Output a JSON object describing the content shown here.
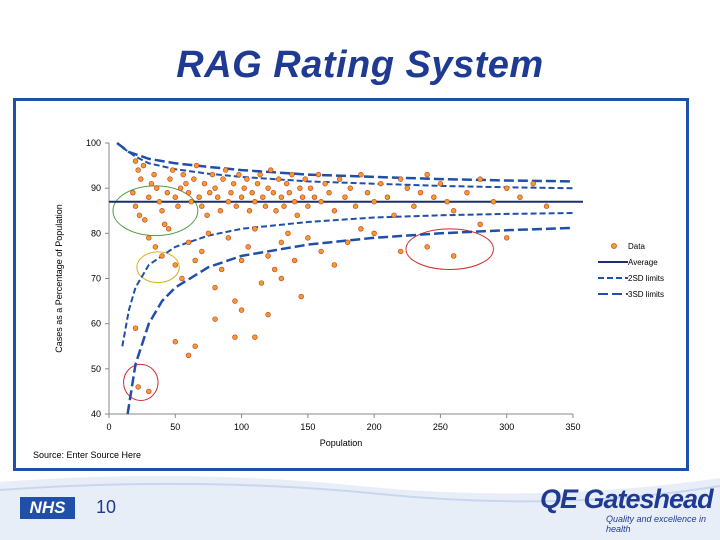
{
  "slide": {
    "title": "RAG Rating System",
    "source": "Source: Enter Source Here",
    "page_number": "10",
    "nhs_logo": "NHS",
    "qe_logo": "QE Gateshead",
    "qe_tagline": "Quality and excellence in health"
  },
  "colors": {
    "title": "#1f3a93",
    "frame": "#1f4fa8",
    "series_line": "#1f4fa8",
    "point_fill": "#f39c2a",
    "point_stroke": "#c0392b",
    "circle_green": "#4f9a3f",
    "circle_yellow": "#d4b21c",
    "circle_red": "#d02c2c"
  },
  "chart_data": {
    "type": "scatter",
    "title": "",
    "xlabel": "Population",
    "ylabel": "Cases as a Percentage of Population",
    "xlim": [
      0,
      350
    ],
    "ylim": [
      40,
      100
    ],
    "x_ticks": [
      "0",
      "50",
      "100",
      "150",
      "200",
      "250",
      "300",
      "350"
    ],
    "y_ticks": [
      "40",
      "50",
      "60",
      "70",
      "80",
      "90",
      "100"
    ],
    "legend_position": "right",
    "legend": [
      "Data",
      "Average",
      "2SD limits",
      "3SD limits"
    ],
    "average": 87,
    "series": [
      {
        "name": "Data",
        "points": [
          [
            20,
            96
          ],
          [
            22,
            94
          ],
          [
            24,
            92
          ],
          [
            26,
            95
          ],
          [
            18,
            89
          ],
          [
            20,
            86
          ],
          [
            23,
            84
          ],
          [
            27,
            83
          ],
          [
            30,
            88
          ],
          [
            32,
            91
          ],
          [
            34,
            93
          ],
          [
            36,
            90
          ],
          [
            38,
            87
          ],
          [
            40,
            85
          ],
          [
            42,
            82
          ],
          [
            44,
            89
          ],
          [
            46,
            92
          ],
          [
            48,
            94
          ],
          [
            50,
            88
          ],
          [
            52,
            86
          ],
          [
            54,
            90
          ],
          [
            56,
            93
          ],
          [
            58,
            91
          ],
          [
            60,
            89
          ],
          [
            62,
            87
          ],
          [
            64,
            92
          ],
          [
            66,
            95
          ],
          [
            68,
            88
          ],
          [
            70,
            86
          ],
          [
            72,
            91
          ],
          [
            74,
            84
          ],
          [
            76,
            89
          ],
          [
            78,
            93
          ],
          [
            80,
            90
          ],
          [
            82,
            88
          ],
          [
            84,
            85
          ],
          [
            86,
            92
          ],
          [
            88,
            94
          ],
          [
            90,
            87
          ],
          [
            92,
            89
          ],
          [
            94,
            91
          ],
          [
            96,
            86
          ],
          [
            98,
            93
          ],
          [
            100,
            88
          ],
          [
            102,
            90
          ],
          [
            104,
            92
          ],
          [
            106,
            85
          ],
          [
            108,
            89
          ],
          [
            110,
            87
          ],
          [
            112,
            91
          ],
          [
            114,
            93
          ],
          [
            116,
            88
          ],
          [
            118,
            86
          ],
          [
            120,
            90
          ],
          [
            122,
            94
          ],
          [
            124,
            89
          ],
          [
            126,
            85
          ],
          [
            128,
            92
          ],
          [
            130,
            88
          ],
          [
            132,
            86
          ],
          [
            134,
            91
          ],
          [
            136,
            89
          ],
          [
            138,
            93
          ],
          [
            140,
            87
          ],
          [
            142,
            84
          ],
          [
            144,
            90
          ],
          [
            146,
            88
          ],
          [
            148,
            92
          ],
          [
            150,
            86
          ],
          [
            152,
            90
          ],
          [
            155,
            88
          ],
          [
            158,
            93
          ],
          [
            160,
            87
          ],
          [
            163,
            91
          ],
          [
            166,
            89
          ],
          [
            170,
            85
          ],
          [
            174,
            92
          ],
          [
            178,
            88
          ],
          [
            182,
            90
          ],
          [
            186,
            86
          ],
          [
            190,
            93
          ],
          [
            195,
            89
          ],
          [
            200,
            87
          ],
          [
            205,
            91
          ],
          [
            210,
            88
          ],
          [
            215,
            84
          ],
          [
            220,
            92
          ],
          [
            225,
            90
          ],
          [
            230,
            86
          ],
          [
            235,
            89
          ],
          [
            240,
            93
          ],
          [
            245,
            88
          ],
          [
            250,
            91
          ],
          [
            255,
            87
          ],
          [
            260,
            85
          ],
          [
            270,
            89
          ],
          [
            280,
            92
          ],
          [
            290,
            87
          ],
          [
            300,
            90
          ],
          [
            310,
            88
          ],
          [
            320,
            91
          ],
          [
            330,
            86
          ],
          [
            30,
            79
          ],
          [
            35,
            77
          ],
          [
            40,
            75
          ],
          [
            45,
            81
          ],
          [
            50,
            73
          ],
          [
            55,
            70
          ],
          [
            60,
            78
          ],
          [
            65,
            74
          ],
          [
            70,
            76
          ],
          [
            75,
            80
          ],
          [
            80,
            68
          ],
          [
            85,
            72
          ],
          [
            90,
            79
          ],
          [
            95,
            65
          ],
          [
            100,
            74
          ],
          [
            105,
            77
          ],
          [
            110,
            81
          ],
          [
            115,
            69
          ],
          [
            120,
            75
          ],
          [
            125,
            72
          ],
          [
            130,
            78
          ],
          [
            135,
            80
          ],
          [
            140,
            74
          ],
          [
            145,
            66
          ],
          [
            150,
            79
          ],
          [
            160,
            76
          ],
          [
            170,
            73
          ],
          [
            180,
            78
          ],
          [
            190,
            81
          ],
          [
            200,
            80
          ],
          [
            220,
            76
          ],
          [
            240,
            77
          ],
          [
            260,
            75
          ],
          [
            280,
            82
          ],
          [
            300,
            79
          ],
          [
            20,
            59
          ],
          [
            50,
            56
          ],
          [
            60,
            53
          ],
          [
            80,
            61
          ],
          [
            100,
            63
          ],
          [
            110,
            57
          ],
          [
            120,
            62
          ],
          [
            130,
            70
          ],
          [
            95,
            57
          ],
          [
            65,
            55
          ],
          [
            22,
            46
          ],
          [
            30,
            45
          ]
        ]
      }
    ],
    "limits": [
      {
        "name": "2SD limits",
        "upper": [
          [
            10,
            99
          ],
          [
            20,
            97
          ],
          [
            30,
            95.5
          ],
          [
            50,
            94.2
          ],
          [
            75,
            93.2
          ],
          [
            100,
            92.5
          ],
          [
            150,
            91.5
          ],
          [
            200,
            91
          ],
          [
            250,
            90.5
          ],
          [
            300,
            90.2
          ],
          [
            350,
            90
          ]
        ],
        "lower": [
          [
            10,
            55
          ],
          [
            15,
            63
          ],
          [
            20,
            68
          ],
          [
            30,
            73
          ],
          [
            50,
            77
          ],
          [
            75,
            79.5
          ],
          [
            100,
            81
          ],
          [
            150,
            82.5
          ],
          [
            200,
            83.5
          ],
          [
            250,
            84
          ],
          [
            300,
            84.3
          ],
          [
            350,
            84.5
          ]
        ]
      },
      {
        "name": "3SD limits",
        "upper": [
          [
            6,
            100
          ],
          [
            15,
            98
          ],
          [
            30,
            96.5
          ],
          [
            50,
            95.5
          ],
          [
            75,
            94.7
          ],
          [
            100,
            94
          ],
          [
            150,
            93
          ],
          [
            200,
            92.5
          ],
          [
            250,
            92
          ],
          [
            300,
            91.7
          ],
          [
            350,
            91.5
          ]
        ],
        "lower": [
          [
            14,
            40
          ],
          [
            20,
            51
          ],
          [
            30,
            60
          ],
          [
            40,
            65
          ],
          [
            50,
            68
          ],
          [
            75,
            72.5
          ],
          [
            100,
            75
          ],
          [
            150,
            77.5
          ],
          [
            200,
            79
          ],
          [
            250,
            80
          ],
          [
            300,
            80.7
          ],
          [
            350,
            81.2
          ]
        ]
      }
    ],
    "highlights": [
      {
        "name": "green",
        "cx": 35,
        "cy": 85,
        "rx": 32,
        "ry": 5.5
      },
      {
        "name": "yellow",
        "cx": 37,
        "cy": 72.5,
        "rx": 16,
        "ry": 3.4
      },
      {
        "name": "red-upper",
        "cx": 257,
        "cy": 76.5,
        "rx": 33,
        "ry": 4.5
      },
      {
        "name": "red-lower",
        "cx": 24,
        "cy": 47,
        "rx": 13,
        "ry": 4
      }
    ]
  }
}
